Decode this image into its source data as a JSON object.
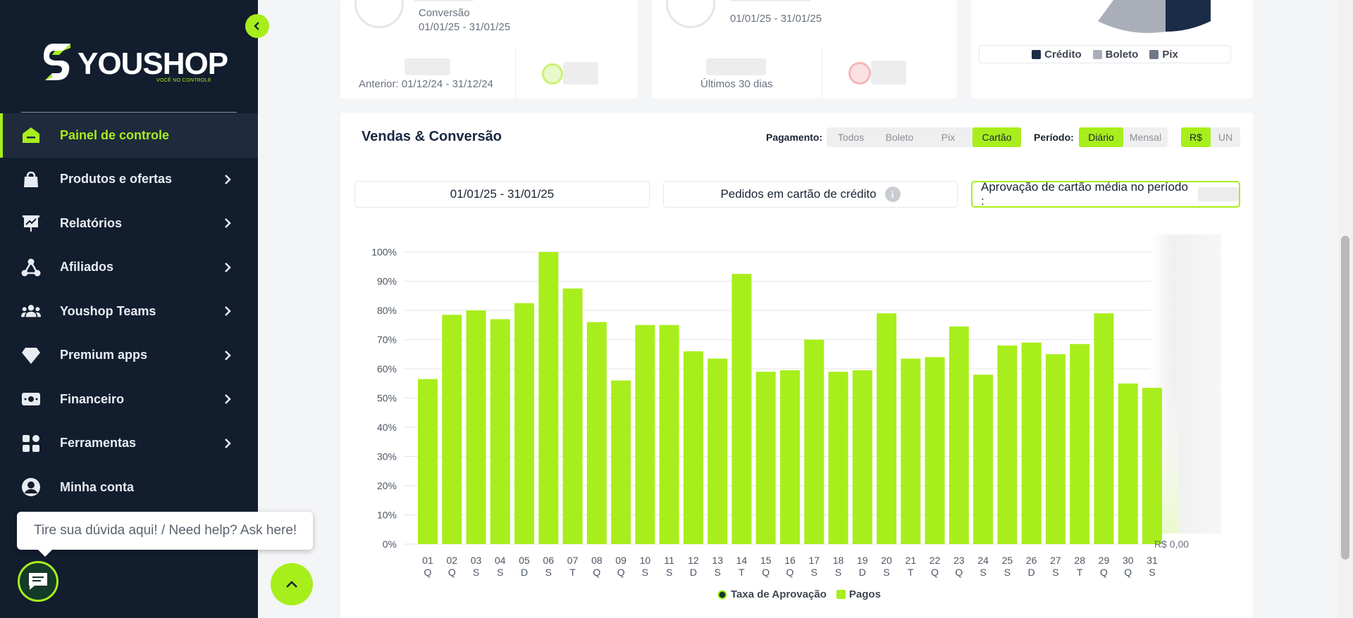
{
  "brand": {
    "name": "YOUSHOP",
    "tagline": "VOCÊ NO CONTROLE",
    "accent": "#a8ee1c",
    "sidebar_bg": "#121d2e"
  },
  "sidebar": {
    "items": [
      {
        "label": "Painel de controle",
        "icon": "home-icon",
        "active": true,
        "has_children": false
      },
      {
        "label": "Produtos e ofertas",
        "icon": "bag-icon",
        "has_children": true
      },
      {
        "label": "Relatórios",
        "icon": "chart-board-icon",
        "has_children": true
      },
      {
        "label": "Afiliados",
        "icon": "network-icon",
        "has_children": true
      },
      {
        "label": "Youshop Teams",
        "icon": "team-icon",
        "has_children": true
      },
      {
        "label": "Premium apps",
        "icon": "diamond-icon",
        "has_children": true
      },
      {
        "label": "Financeiro",
        "icon": "money-icon",
        "has_children": true
      },
      {
        "label": "Ferramentas",
        "icon": "tools-grid-icon",
        "has_children": true
      },
      {
        "label": "Minha conta",
        "icon": "account-icon",
        "has_children": false
      }
    ]
  },
  "chat": {
    "bubble_text": "Tire sua dúvida aqui! / Need help? Ask here!"
  },
  "top_cards": {
    "conversion": {
      "label": "Conversão",
      "period": "01/01/25 - 31/01/25",
      "previous": "Anterior: 01/12/24 - 31/12/24"
    },
    "cart": {
      "period": "01/01/25 - 31/01/25",
      "last": "Últimos 30 dias"
    },
    "payment_legend": [
      {
        "label": "Crédito",
        "color": "#1b2c48"
      },
      {
        "label": "Boleto",
        "color": "#a9aeb8"
      },
      {
        "label": "Pix",
        "color": "#6f7886"
      }
    ]
  },
  "sales": {
    "title": "Vendas & Conversão",
    "payment_label": "Pagamento:",
    "payment_options": [
      "Todos",
      "Boleto",
      "Pix",
      "Cartão"
    ],
    "payment_selected": "Cartão",
    "period_label": "Período:",
    "period_options": [
      "Diário",
      "Mensal"
    ],
    "period_selected": "Diário",
    "unit_options": [
      "R$",
      "UN"
    ],
    "unit_selected": "R$",
    "date_range": "01/01/25 - 31/01/25",
    "orders_label": "Pedidos em cartão de crédito",
    "info_glyph": "i",
    "approval_label": "Aprovação de cartão média no período :",
    "right_axis_label": "R$ 0,00"
  },
  "chart_data": {
    "type": "bar",
    "categories": [
      "01",
      "02",
      "03",
      "04",
      "05",
      "06",
      "07",
      "08",
      "09",
      "10",
      "11",
      "12",
      "13",
      "14",
      "15",
      "16",
      "17",
      "18",
      "19",
      "20",
      "21",
      "22",
      "23",
      "24",
      "25",
      "26",
      "27",
      "28",
      "29",
      "30",
      "31"
    ],
    "weekdays": [
      "Q",
      "Q",
      "S",
      "S",
      "D",
      "S",
      "T",
      "Q",
      "Q",
      "S",
      "S",
      "D",
      "S",
      "T",
      "Q",
      "Q",
      "S",
      "S",
      "D",
      "S",
      "T",
      "Q",
      "Q",
      "S",
      "S",
      "D",
      "S",
      "T",
      "Q",
      "Q",
      "S"
    ],
    "series": [
      {
        "name": "Pagos",
        "color": "#a8ee1c",
        "values": [
          56.5,
          78.5,
          80,
          77,
          82.5,
          100,
          87.5,
          76,
          56,
          75,
          75,
          66,
          63.5,
          92.5,
          59,
          59.5,
          70,
          59,
          59.5,
          79,
          63.5,
          64,
          74.5,
          58,
          68,
          69,
          65,
          68.5,
          79,
          55,
          53.5
        ]
      },
      {
        "name": "Taxa de Aprovação",
        "color": "#143a2a"
      }
    ],
    "y_ticks": [
      "0%",
      "10%",
      "20%",
      "30%",
      "40%",
      "50%",
      "60%",
      "70%",
      "80%",
      "90%",
      "100%"
    ],
    "ylim": [
      0,
      100
    ],
    "grid": true,
    "legend": "bottom-center"
  }
}
